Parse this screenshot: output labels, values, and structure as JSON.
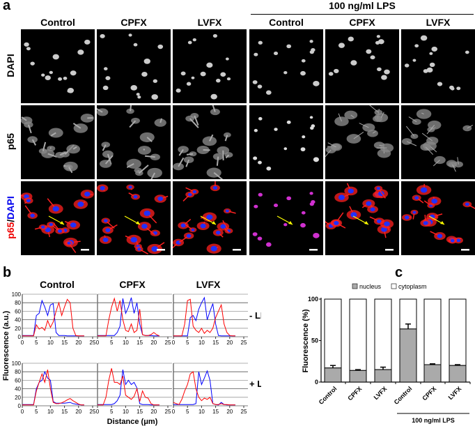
{
  "panels": {
    "a": "a",
    "b": "b",
    "c": "c"
  },
  "panel_a": {
    "lps_group_label": "100 ng/ml LPS",
    "columns": [
      "Control",
      "CPFX",
      "LVFX",
      "Control",
      "CPFX",
      "LVFX"
    ],
    "rows": [
      "DAPI",
      "p65",
      "p65/DAPI"
    ],
    "merge_label_parts": {
      "red": "p65",
      "sep": "/",
      "blue": "DAPI"
    },
    "colors": {
      "p65": "#ff2020",
      "dapi": "#2030ff",
      "arrow": "#ffff00"
    }
  },
  "panel_b": {
    "columns": [
      "Control",
      "CPFX",
      "LVFX"
    ],
    "row_labels": [
      "- LPS",
      "+ LPS"
    ],
    "ylabel": "Fluorescence (a.u.)",
    "xlabel": "Distance (μm)",
    "xticks": [
      0,
      5,
      10,
      15,
      20,
      25
    ],
    "yticks": [
      0,
      20,
      40,
      60,
      80,
      100
    ],
    "colors": {
      "p65": "#ff0000",
      "dapi": "#0000ff"
    }
  },
  "chart_data": [
    {
      "type": "line",
      "panel": "b",
      "xlabel": "Distance (μm)",
      "ylabel": "Fluorescence (a.u.)",
      "xlim": [
        0,
        25
      ],
      "ylim": [
        0,
        100
      ],
      "grid": true,
      "x": [
        0,
        1,
        2,
        3,
        4,
        5,
        6,
        7,
        8,
        9,
        10,
        11,
        12,
        13,
        14,
        15,
        16,
        17,
        18,
        19,
        20,
        21,
        22
      ],
      "plots": [
        {
          "condition": "- LPS",
          "column": "Control",
          "blue": [
            3,
            3,
            3,
            3,
            3,
            50,
            55,
            85,
            70,
            50,
            75,
            78,
            10,
            3,
            3,
            3,
            2,
            2,
            2,
            2,
            2,
            2,
            2
          ],
          "red": [
            2,
            2,
            2,
            2,
            2,
            28,
            18,
            22,
            15,
            38,
            22,
            35,
            60,
            80,
            50,
            70,
            88,
            80,
            20,
            3,
            2,
            2,
            2
          ]
        },
        {
          "condition": "- LPS",
          "column": "CPFX",
          "blue": [
            3,
            3,
            3,
            3,
            3,
            3,
            3,
            10,
            25,
            90,
            55,
            70,
            92,
            55,
            80,
            30,
            5,
            3,
            3,
            3,
            2,
            2,
            2
          ],
          "red": [
            2,
            2,
            2,
            2,
            40,
            70,
            90,
            60,
            85,
            40,
            15,
            12,
            30,
            10,
            15,
            65,
            5,
            3,
            3,
            5,
            10,
            5,
            2
          ]
        },
        {
          "condition": "- LPS",
          "column": "LVFX",
          "blue": [
            2,
            2,
            2,
            2,
            2,
            2,
            45,
            50,
            38,
            65,
            80,
            92,
            40,
            60,
            78,
            30,
            3,
            2,
            2,
            2,
            2,
            2,
            2
          ],
          "red": [
            2,
            2,
            2,
            2,
            30,
            85,
            88,
            25,
            15,
            10,
            20,
            8,
            15,
            10,
            20,
            45,
            60,
            75,
            30,
            10,
            3,
            2,
            2
          ]
        },
        {
          "condition": "+ LPS",
          "column": "Control",
          "blue": [
            3,
            3,
            3,
            3,
            3,
            40,
            55,
            60,
            80,
            65,
            60,
            10,
            6,
            6,
            6,
            6,
            7,
            8,
            5,
            4,
            3,
            2,
            2
          ],
          "red": [
            2,
            2,
            2,
            2,
            2,
            35,
            55,
            75,
            55,
            85,
            40,
            8,
            5,
            5,
            7,
            10,
            14,
            17,
            12,
            8,
            4,
            2,
            2
          ]
        },
        {
          "condition": "+ LPS",
          "column": "CPFX",
          "blue": [
            3,
            3,
            3,
            3,
            3,
            3,
            5,
            12,
            25,
            85,
            50,
            60,
            50,
            55,
            42,
            5,
            3,
            3,
            3,
            2,
            2,
            2,
            2
          ],
          "red": [
            2,
            2,
            2,
            20,
            60,
            88,
            55,
            55,
            50,
            70,
            25,
            20,
            15,
            22,
            40,
            10,
            35,
            20,
            18,
            5,
            2,
            2,
            2
          ]
        },
        {
          "condition": "+ LPS",
          "column": "LVFX",
          "blue": [
            3,
            3,
            3,
            3,
            3,
            3,
            3,
            3,
            5,
            80,
            50,
            65,
            82,
            60,
            5,
            3,
            2,
            8,
            3,
            2,
            2,
            2,
            2
          ],
          "red": [
            8,
            5,
            3,
            15,
            35,
            50,
            75,
            80,
            40,
            20,
            12,
            18,
            15,
            20,
            5,
            3,
            3,
            5,
            3,
            3,
            2,
            2,
            2
          ]
        }
      ]
    },
    {
      "type": "bar",
      "panel": "c",
      "stacked": true,
      "ylabel": "Fluorescence (%)",
      "ylim": [
        0,
        100
      ],
      "yticks": [
        0,
        50,
        100
      ],
      "categories": [
        "Control",
        "CPFX",
        "LVFX",
        "Control",
        "CPFX",
        "LVFX"
      ],
      "group_label": "100 ng/ml LPS",
      "legend": [
        "nucleus",
        "cytoplasm"
      ],
      "legend_placement": "top",
      "series": [
        {
          "name": "nucleus",
          "values": [
            17,
            14,
            15,
            64,
            21,
            20
          ],
          "error": [
            3,
            1,
            3,
            6,
            1,
            1
          ],
          "color": "#aaaaaa"
        },
        {
          "name": "cytoplasm",
          "values": [
            83,
            86,
            85,
            36,
            79,
            80
          ],
          "color": "#ffffff"
        }
      ]
    }
  ]
}
